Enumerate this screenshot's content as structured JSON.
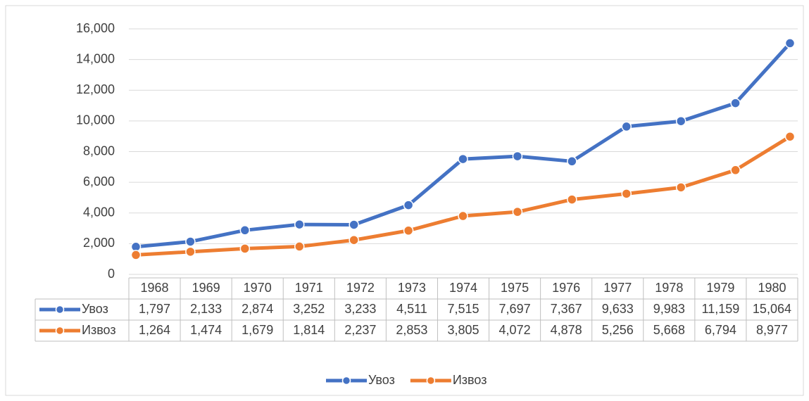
{
  "chart_data": {
    "type": "line",
    "categories": [
      "1968",
      "1969",
      "1970",
      "1971",
      "1972",
      "1973",
      "1974",
      "1975",
      "1976",
      "1977",
      "1978",
      "1979",
      "1980"
    ],
    "series": [
      {
        "name": "Увоз",
        "color": "#4472c4",
        "values": [
          1797,
          2133,
          2874,
          3252,
          3233,
          4511,
          7515,
          7697,
          7367,
          9633,
          9983,
          11159,
          15064
        ],
        "value_labels": [
          "1,797",
          "2,133",
          "2,874",
          "3,252",
          "3,233",
          "4,511",
          "7,515",
          "7,697",
          "7,367",
          "9,633",
          "9,983",
          "11,159",
          "15,064"
        ]
      },
      {
        "name": "Извоз",
        "color": "#ed7d31",
        "values": [
          1264,
          1474,
          1679,
          1814,
          2237,
          2853,
          3805,
          4072,
          4878,
          5256,
          5668,
          6794,
          8977
        ],
        "value_labels": [
          "1,264",
          "1,474",
          "1,679",
          "1,814",
          "2,237",
          "2,853",
          "3,805",
          "4,072",
          "4,878",
          "5,256",
          "5,668",
          "6,794",
          "8,977"
        ]
      }
    ],
    "ylim": [
      0,
      16000
    ],
    "yticks": [
      0,
      {
        "value": 2000,
        "label": "2,000"
      },
      {
        "value": 4000,
        "label": "4,000"
      },
      {
        "value": 6000,
        "label": "6,000"
      },
      {
        "value": 8000,
        "label": "8,000"
      },
      {
        "value": 10000,
        "label": "10,000"
      },
      {
        "value": 12000,
        "label": "12,000"
      },
      {
        "value": 14000,
        "label": "14,000"
      },
      {
        "value": 16000,
        "label": "16,000"
      }
    ],
    "grid": true,
    "legend": "bottom",
    "data_table": true
  }
}
